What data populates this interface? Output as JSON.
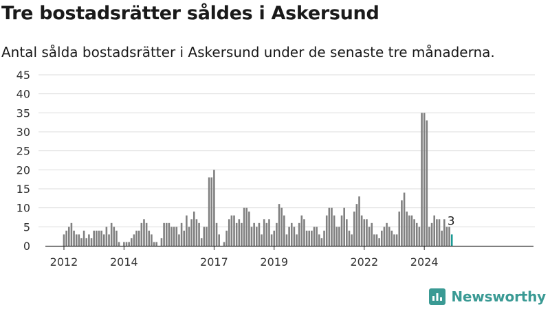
{
  "title": "Tre bostadsrätter såldes i Askersund",
  "subtitle": "Antal sålda bostadsrätter i Askersund under de senaste tre månaderna.",
  "brand": {
    "name": "Newsworthy",
    "logo_icon": "newsworthy-logo-icon",
    "color": "#3a9a94"
  },
  "chart_data": {
    "type": "bar",
    "start": "2012-01",
    "frequency": "monthly",
    "values": [
      3,
      4,
      5,
      6,
      4,
      3,
      3,
      2,
      4,
      2,
      3,
      2,
      4,
      4,
      4,
      4,
      3,
      5,
      3,
      6,
      5,
      4,
      1,
      0,
      1,
      1,
      1,
      2,
      3,
      4,
      4,
      6,
      7,
      6,
      4,
      3,
      1,
      1,
      0,
      2,
      6,
      6,
      6,
      5,
      5,
      5,
      3,
      6,
      4,
      8,
      5,
      7,
      9,
      7,
      6,
      2,
      5,
      5,
      18,
      18,
      20,
      6,
      3,
      0,
      1,
      4,
      7,
      8,
      8,
      6,
      7,
      6,
      10,
      10,
      9,
      5,
      6,
      5,
      6,
      3,
      7,
      6,
      7,
      3,
      4,
      6,
      11,
      10,
      8,
      3,
      5,
      6,
      5,
      3,
      6,
      8,
      7,
      4,
      4,
      4,
      5,
      5,
      3,
      2,
      4,
      8,
      10,
      10,
      8,
      5,
      5,
      8,
      10,
      7,
      4,
      3,
      9,
      11,
      13,
      8,
      7,
      7,
      5,
      6,
      3,
      3,
      2,
      4,
      5,
      6,
      5,
      4,
      3,
      3,
      9,
      12,
      14,
      9,
      8,
      8,
      7,
      6,
      5,
      35,
      35,
      33,
      5,
      6,
      8,
      7,
      7,
      4,
      7,
      5,
      5,
      3
    ],
    "highlight_last": true,
    "last_value_label": "3",
    "bar_color": "#808080",
    "highlight_color": "#1a9a94",
    "x_tick_labels": [
      "2012",
      "2014",
      "2017",
      "2019",
      "2022",
      "2024"
    ],
    "x_tick_positions": [
      "2012-01",
      "2014-01",
      "2017-01",
      "2019-01",
      "2022-01",
      "2024-01"
    ],
    "y_ticks": [
      0,
      5,
      10,
      15,
      20,
      25,
      30,
      35,
      40,
      45
    ],
    "ylim": [
      0,
      45
    ],
    "grid": true
  }
}
